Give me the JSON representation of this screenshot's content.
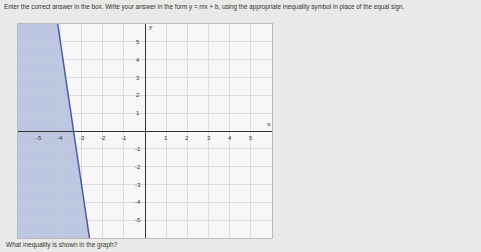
{
  "instructions": "Enter the correct answer in the box. Write your answer in the form y = mx + b, using the appropriate inequality symbol in place of the equal sign.",
  "question": "What inequality is shown in the graph?",
  "chart_data": {
    "type": "line",
    "x_label": "x",
    "y_label": "y",
    "x": [
      -4.125,
      -2.625
    ],
    "values": [
      6,
      -6
    ],
    "color": "#4a5aa8",
    "line_style": "solid",
    "xlim": [
      -6,
      6
    ],
    "ylim": [
      -6,
      6
    ],
    "xticks": [
      -5,
      -4,
      -3,
      -2,
      -1,
      1,
      2,
      3,
      4,
      5
    ],
    "yticks": [
      -5,
      -4,
      -3,
      -2,
      -1,
      1,
      2,
      3,
      4,
      5
    ],
    "grid": true
  }
}
